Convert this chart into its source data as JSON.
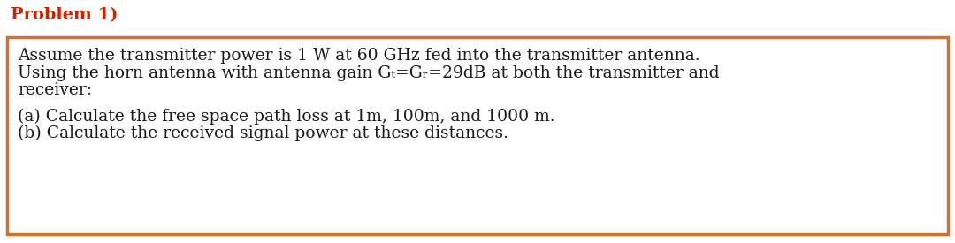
{
  "title": "Problem 1)",
  "title_color": "#cc2200",
  "title_fontsize": 14,
  "box_edge_color": "#d47030",
  "box_face_color": "#ffffff",
  "background_color": "#ffffff",
  "lines": [
    "Assume the transmitter power is 1 W at 60 GHz fed into the transmitter antenna.",
    "Using the horn antenna with antenna gain Gₜ=Gᵣ=29dB at both the transmitter and",
    "receiver:",
    "",
    "(a) Calculate the free space path loss at 1m, 100m, and 1000 m.",
    "(b) Calculate the received signal power at these distances."
  ],
  "text_color": "#1a1a1a",
  "text_fontsize": 13.5,
  "font_family": "DejaVu Serif",
  "fig_width": 10.8,
  "fig_height": 2.75,
  "dpi": 100
}
